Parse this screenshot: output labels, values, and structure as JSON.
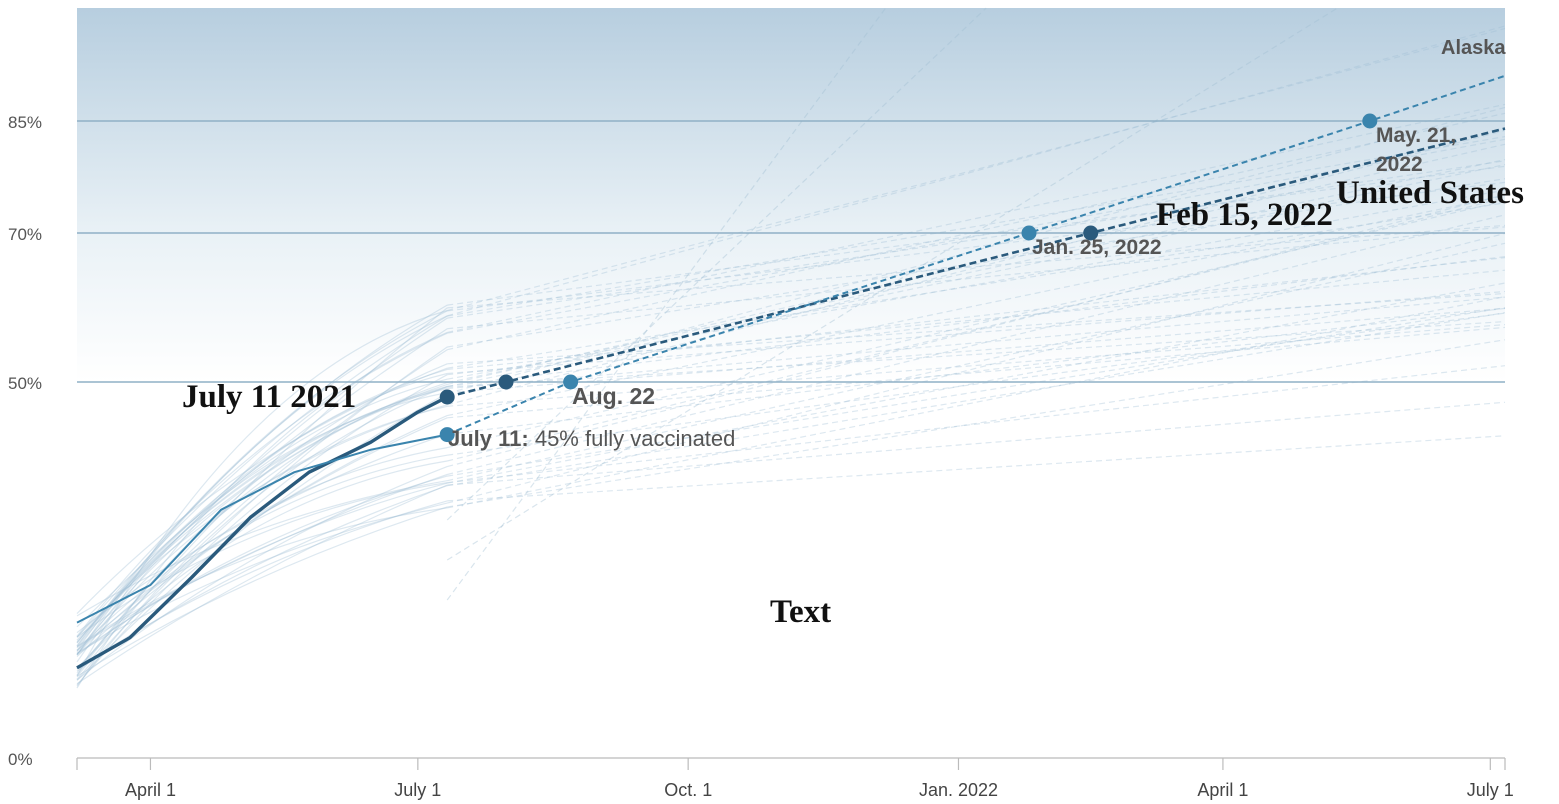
{
  "chart_data": {
    "type": "line",
    "title": "",
    "xlabel": "",
    "ylabel": "",
    "x_range": [
      "2021-03-07",
      "2022-07-06"
    ],
    "ylim": [
      0,
      100
    ],
    "x_ticks": [
      {
        "date": "2021-04-01",
        "label": "April 1"
      },
      {
        "date": "2021-07-01",
        "label": "July 1"
      },
      {
        "date": "2021-10-01",
        "label": "Oct. 1"
      },
      {
        "date": "2022-01-01",
        "label": "Jan. 2022"
      },
      {
        "date": "2022-04-01",
        "label": "April 1"
      },
      {
        "date": "2022-07-01",
        "label": "July 1"
      }
    ],
    "y_ticks": [
      {
        "value": 0,
        "label": "0%"
      },
      {
        "value": 50,
        "label": "50%"
      },
      {
        "value": 70,
        "label": "70%"
      },
      {
        "value": 85,
        "label": "85%"
      }
    ],
    "grid_lines_y": [
      50,
      70,
      85
    ],
    "series": [
      {
        "name": "United States",
        "style": "actual",
        "color": "#2a5a7c",
        "points": [
          [
            "2021-03-07",
            12
          ],
          [
            "2021-03-25",
            16
          ],
          [
            "2021-04-15",
            24
          ],
          [
            "2021-05-05",
            32
          ],
          [
            "2021-05-25",
            38
          ],
          [
            "2021-06-15",
            42
          ],
          [
            "2021-07-01",
            46
          ],
          [
            "2021-07-11",
            48
          ]
        ]
      },
      {
        "name": "United States",
        "style": "projection",
        "color": "#2a5a7c",
        "points": [
          [
            "2021-07-11",
            48
          ],
          [
            "2021-07-31",
            50
          ],
          [
            "2022-02-15",
            70
          ],
          [
            "2022-07-06",
            84
          ]
        ]
      },
      {
        "name": "Alaska",
        "style": "actual",
        "color": "#3a84ad",
        "points": [
          [
            "2021-03-07",
            18
          ],
          [
            "2021-04-01",
            23
          ],
          [
            "2021-04-25",
            33
          ],
          [
            "2021-05-20",
            38
          ],
          [
            "2021-06-15",
            41
          ],
          [
            "2021-07-11",
            43
          ]
        ]
      },
      {
        "name": "Alaska",
        "style": "projection",
        "color": "#3a84ad",
        "points": [
          [
            "2021-07-11",
            43
          ],
          [
            "2021-08-22",
            50
          ],
          [
            "2022-01-25",
            70
          ],
          [
            "2022-05-21",
            85
          ],
          [
            "2022-07-06",
            91
          ]
        ]
      }
    ],
    "markers": [
      {
        "date": "2021-07-11",
        "value": 48,
        "color": "#2a5a7c"
      },
      {
        "date": "2021-07-31",
        "value": 50,
        "color": "#2a5a7c"
      },
      {
        "date": "2022-02-15",
        "value": 70,
        "color": "#2a5a7c"
      },
      {
        "date": "2021-07-11",
        "value": 43,
        "color": "#3a84ad"
      },
      {
        "date": "2021-08-22",
        "value": 50,
        "color": "#3a84ad"
      },
      {
        "date": "2022-01-25",
        "value": 70,
        "color": "#3a84ad"
      },
      {
        "date": "2022-05-21",
        "value": 85,
        "color": "#3a84ad"
      }
    ],
    "annotations": {
      "alaska": "Alaska",
      "may21_line1": "May. 21,",
      "may21_line2": "2022",
      "united_states": "United States",
      "feb15": "Feb 15, 2022",
      "jan25": "Jan. 25, 2022",
      "july11_2021": "July 11 2021",
      "aug22": "Aug. 22",
      "july11_bold": "July 11:",
      "july11_rest": " 45% fully vaccinated",
      "center_text": "Text"
    }
  }
}
